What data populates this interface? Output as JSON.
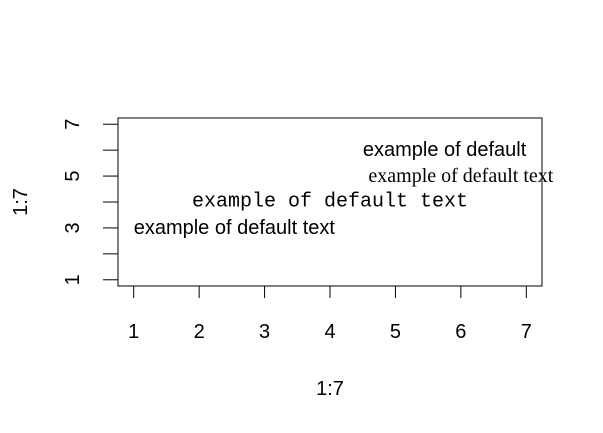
{
  "chart_data": {
    "type": "scatter",
    "title": "",
    "xlabel": "1:7",
    "ylabel": "1:7",
    "xlim": [
      0.76,
      7.24
    ],
    "ylim": [
      0.76,
      7.24
    ],
    "x_ticks": [
      1,
      2,
      3,
      4,
      5,
      6,
      7
    ],
    "y_ticks": [
      1,
      3,
      5,
      7
    ],
    "y_minor_ticks": [
      2,
      4,
      6
    ],
    "grid": false,
    "annotations": [
      {
        "text": "example of default",
        "x": 7,
        "y": 6,
        "anchor": "end",
        "family": "sans"
      },
      {
        "text": "example of default text",
        "x": 6,
        "y": 5,
        "anchor": "middle",
        "family": "serif"
      },
      {
        "text": "example of default text",
        "x": 4,
        "y": 4,
        "anchor": "middle",
        "family": "mono"
      },
      {
        "text": "example of default text",
        "x": 1,
        "y": 3,
        "anchor": "start",
        "family": "sans"
      }
    ]
  }
}
